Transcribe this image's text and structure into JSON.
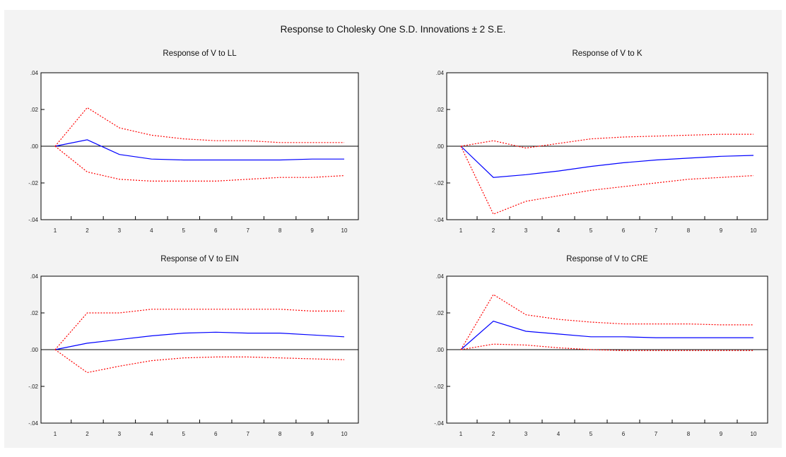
{
  "chart_data": {
    "title": "Response to Cholesky One S.D. Innovations ± 2 S.E.",
    "panels": [
      {
        "type": "line",
        "title": "Response of V to LL",
        "x": [
          1,
          2,
          3,
          4,
          5,
          6,
          7,
          8,
          9,
          10
        ],
        "ylim": [
          -0.04,
          0.04
        ],
        "yticks": [
          ".04",
          ".02",
          ".00",
          "-.02",
          "-.04"
        ],
        "xticks": [
          "1",
          "2",
          "3",
          "4",
          "5",
          "6",
          "7",
          "8",
          "9",
          "10"
        ],
        "series": [
          {
            "role": "response",
            "color": "#0000ff",
            "style": "solid",
            "values": [
              0.0,
              0.0035,
              -0.0045,
              -0.007,
              -0.0075,
              -0.0075,
              -0.0075,
              -0.0075,
              -0.007,
              -0.007
            ]
          },
          {
            "role": "upper",
            "color": "#ff0000",
            "style": "dotted",
            "values": [
              0.0,
              0.021,
              0.01,
              0.006,
              0.004,
              0.003,
              0.003,
              0.002,
              0.002,
              0.002
            ]
          },
          {
            "role": "lower",
            "color": "#ff0000",
            "style": "dotted",
            "values": [
              0.0,
              -0.014,
              -0.018,
              -0.019,
              -0.019,
              -0.019,
              -0.018,
              -0.017,
              -0.017,
              -0.016
            ]
          }
        ]
      },
      {
        "type": "line",
        "title": "Response of V to K",
        "x": [
          1,
          2,
          3,
          4,
          5,
          6,
          7,
          8,
          9,
          10
        ],
        "ylim": [
          -0.04,
          0.04
        ],
        "yticks": [
          ".04",
          ".02",
          ".00",
          "-.02",
          "-.04"
        ],
        "xticks": [
          "1",
          "2",
          "3",
          "4",
          "5",
          "6",
          "7",
          "8",
          "9",
          "10"
        ],
        "series": [
          {
            "role": "response",
            "color": "#0000ff",
            "style": "solid",
            "values": [
              0.0,
              -0.017,
              -0.0155,
              -0.0135,
              -0.011,
              -0.009,
              -0.0075,
              -0.0065,
              -0.0055,
              -0.005
            ]
          },
          {
            "role": "upper",
            "color": "#ff0000",
            "style": "dotted",
            "values": [
              0.0,
              0.003,
              -0.001,
              0.0015,
              0.004,
              0.005,
              0.0055,
              0.006,
              0.0065,
              0.0065
            ]
          },
          {
            "role": "lower",
            "color": "#ff0000",
            "style": "dotted",
            "values": [
              0.0,
              -0.037,
              -0.03,
              -0.027,
              -0.024,
              -0.022,
              -0.02,
              -0.018,
              -0.017,
              -0.016
            ]
          }
        ]
      },
      {
        "type": "line",
        "title": "Response of V to EIN",
        "x": [
          1,
          2,
          3,
          4,
          5,
          6,
          7,
          8,
          9,
          10
        ],
        "ylim": [
          -0.04,
          0.04
        ],
        "yticks": [
          ".04",
          ".02",
          ".00",
          "-.02",
          "-.04"
        ],
        "xticks": [
          "1",
          "2",
          "3",
          "4",
          "5",
          "6",
          "7",
          "8",
          "9",
          "10"
        ],
        "series": [
          {
            "role": "response",
            "color": "#0000ff",
            "style": "solid",
            "values": [
              0.0,
              0.0035,
              0.0055,
              0.0075,
              0.009,
              0.0095,
              0.009,
              0.009,
              0.008,
              0.007
            ]
          },
          {
            "role": "upper",
            "color": "#ff0000",
            "style": "dotted",
            "values": [
              0.0,
              0.02,
              0.02,
              0.022,
              0.022,
              0.022,
              0.022,
              0.022,
              0.021,
              0.021
            ]
          },
          {
            "role": "lower",
            "color": "#ff0000",
            "style": "dotted",
            "values": [
              0.0,
              -0.0125,
              -0.009,
              -0.006,
              -0.0045,
              -0.004,
              -0.004,
              -0.0045,
              -0.005,
              -0.0055
            ]
          }
        ]
      },
      {
        "type": "line",
        "title": "Response of V to CRE",
        "x": [
          1,
          2,
          3,
          4,
          5,
          6,
          7,
          8,
          9,
          10
        ],
        "ylim": [
          -0.04,
          0.04
        ],
        "yticks": [
          ".04",
          ".02",
          ".00",
          "-.02",
          "-.04"
        ],
        "xticks": [
          "1",
          "2",
          "3",
          "4",
          "5",
          "6",
          "7",
          "8",
          "9",
          "10"
        ],
        "series": [
          {
            "role": "response",
            "color": "#0000ff",
            "style": "solid",
            "values": [
              0.0,
              0.0155,
              0.01,
              0.0085,
              0.007,
              0.007,
              0.0065,
              0.0065,
              0.0065,
              0.0065
            ]
          },
          {
            "role": "upper",
            "color": "#ff0000",
            "style": "dotted",
            "values": [
              0.0,
              0.03,
              0.019,
              0.0165,
              0.015,
              0.014,
              0.014,
              0.014,
              0.0135,
              0.0135
            ]
          },
          {
            "role": "lower",
            "color": "#ff0000",
            "style": "dotted",
            "values": [
              0.0,
              0.003,
              0.0025,
              0.001,
              0.0,
              -0.0005,
              -0.0005,
              -0.0005,
              -0.0005,
              -0.0005
            ]
          }
        ]
      }
    ]
  }
}
